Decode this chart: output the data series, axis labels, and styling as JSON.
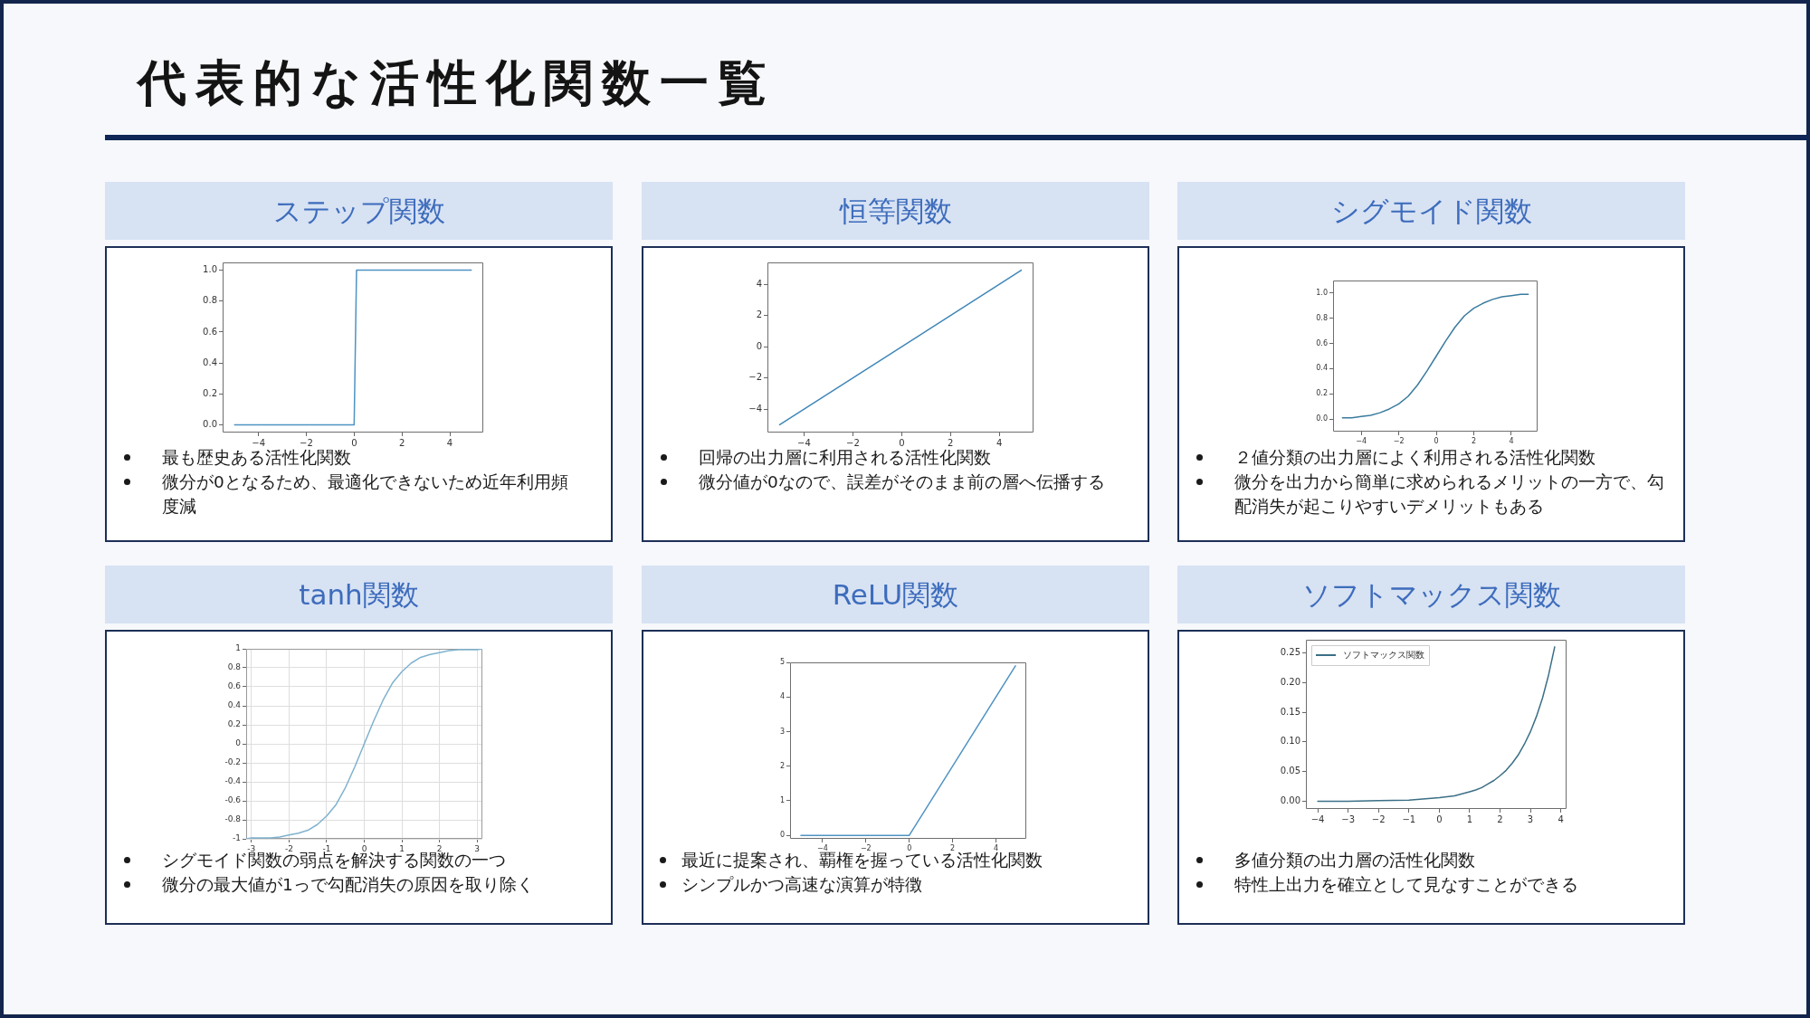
{
  "chart_data": [
    {
      "type": "other",
      "title": "代表的な活性化関数一覧"
    },
    {
      "type": "line",
      "title": "ステップ関数",
      "x": [
        -5,
        0,
        0.1,
        4.9
      ],
      "series": [
        {
          "color": "#4f93c4",
          "values": [
            0,
            0,
            1,
            1
          ]
        }
      ],
      "xlim": [
        -5.5,
        5.4
      ],
      "ylim": [
        -0.05,
        1.05
      ],
      "xticks": [
        {
          "value": -4,
          "label": "−4"
        },
        {
          "value": -2,
          "label": "−2"
        },
        0,
        2,
        4
      ],
      "yticks": [
        {
          "value": 0,
          "label": "0.0"
        },
        0.2,
        0.4,
        0.6,
        0.8,
        {
          "value": 1,
          "label": "1.0"
        }
      ],
      "annotations": [
        "最も歴史ある活性化関数",
        "微分が0となるため、最適化できないため近年利用頻度減"
      ]
    },
    {
      "type": "line",
      "title": "恒等関数",
      "x": [
        -5,
        4.9
      ],
      "series": [
        {
          "color": "#3f86b8",
          "values": [
            -5,
            4.9
          ]
        }
      ],
      "xlim": [
        -5.5,
        5.4
      ],
      "ylim": [
        -5.5,
        5.4
      ],
      "xticks": [
        {
          "value": -4,
          "label": "−4"
        },
        {
          "value": -2,
          "label": "−2"
        },
        0,
        2,
        4
      ],
      "yticks": [
        {
          "value": -4,
          "label": "−4"
        },
        {
          "value": -2,
          "label": "−2"
        },
        0,
        2,
        4
      ],
      "annotations": [
        "回帰の出力層に利用される活性化関数",
        "微分値が0なので、誤差がそのまま前の層へ伝播する"
      ]
    },
    {
      "type": "line",
      "title": "シグモイド関数",
      "x": [
        -5,
        -4.5,
        -4,
        -3.5,
        -3,
        -2.5,
        -2,
        -1.5,
        -1,
        -0.5,
        0,
        0.5,
        1,
        1.5,
        2,
        2.5,
        3,
        3.5,
        4,
        4.5,
        4.9
      ],
      "series": [
        {
          "color": "#3a7b9e",
          "values": [
            0.01,
            0.01,
            0.02,
            0.03,
            0.05,
            0.08,
            0.12,
            0.18,
            0.27,
            0.38,
            0.5,
            0.62,
            0.73,
            0.82,
            0.88,
            0.92,
            0.95,
            0.97,
            0.98,
            0.99,
            0.99
          ]
        }
      ],
      "xlim": [
        -5.5,
        5.4
      ],
      "ylim": [
        -0.1,
        1.1
      ],
      "xticks": [
        {
          "value": -4,
          "label": "−4"
        },
        {
          "value": -2,
          "label": "−2"
        },
        0,
        2,
        4
      ],
      "yticks": [
        {
          "value": 0,
          "label": "0.0"
        },
        0.2,
        0.4,
        0.6,
        0.8,
        {
          "value": 1,
          "label": "1.0"
        }
      ],
      "annotations": [
        "２値分類の出力層によく利用される活性化関数",
        "微分を出力から簡単に求められるメリットの一方で、勾配消失が起こりやすいデメリットもある"
      ]
    },
    {
      "type": "line",
      "title": "tanh関数",
      "x": [
        -3.14,
        -3,
        -2.75,
        -2.5,
        -2.25,
        -2,
        -1.75,
        -1.5,
        -1.25,
        -1,
        -0.75,
        -0.5,
        -0.25,
        0,
        0.25,
        0.5,
        0.75,
        1,
        1.25,
        1.5,
        1.75,
        2,
        2.25,
        2.5,
        2.75,
        3,
        3.14
      ],
      "series": [
        {
          "color": "#7fb2cf",
          "values": [
            -1,
            -0.99,
            -0.99,
            -0.99,
            -0.98,
            -0.96,
            -0.94,
            -0.91,
            -0.85,
            -0.76,
            -0.64,
            -0.46,
            -0.24,
            0,
            0.24,
            0.46,
            0.64,
            0.76,
            0.85,
            0.91,
            0.94,
            0.96,
            0.98,
            0.99,
            0.99,
            0.99,
            1
          ]
        }
      ],
      "xlim": [
        -3.14,
        3.14
      ],
      "ylim": [
        -1,
        1
      ],
      "xticks": [
        -3,
        -2,
        -1,
        0,
        1,
        2,
        3
      ],
      "yticks": [
        -1,
        -0.8,
        -0.6,
        -0.4,
        -0.2,
        0,
        0.2,
        0.4,
        0.6,
        0.8,
        1
      ],
      "grid": true,
      "annotations": [
        "シグモイド関数の弱点を解決する関数の一つ",
        "微分の最大値が1っで勾配消失の原因を取り除く"
      ]
    },
    {
      "type": "line",
      "title": "ReLU関数",
      "x": [
        -5,
        0,
        4.9
      ],
      "series": [
        {
          "color": "#4f93c4",
          "values": [
            0,
            0,
            4.9
          ]
        }
      ],
      "xlim": [
        -5.5,
        5.4
      ],
      "ylim": [
        -0.1,
        5
      ],
      "xticks": [
        {
          "value": -4,
          "label": "−4"
        },
        {
          "value": -2,
          "label": "−2"
        },
        0,
        2,
        4
      ],
      "yticks": [
        0,
        1,
        2,
        3,
        4,
        5
      ],
      "annotations": [
        "最近に提案され、覇権を握っている活性化関数",
        "シンプルかつ高速な演算が特徴"
      ]
    },
    {
      "type": "line",
      "title": "ソフトマックス関数",
      "x": [
        -4,
        -3,
        -2,
        -1,
        0,
        0.5,
        1,
        1.2,
        1.4,
        1.6,
        1.8,
        2,
        2.2,
        2.4,
        2.6,
        2.8,
        3,
        3.2,
        3.4,
        3.6,
        3.8
      ],
      "series": [
        {
          "name": "ソフトマックス関数",
          "color": "#3b6f86",
          "values": [
            0,
            0,
            0.001,
            0.002,
            0.006,
            0.009,
            0.016,
            0.019,
            0.023,
            0.029,
            0.035,
            0.043,
            0.052,
            0.064,
            0.078,
            0.096,
            0.117,
            0.143,
            0.174,
            0.213,
            0.26
          ]
        }
      ],
      "xlim": [
        -4.39,
        4.19
      ],
      "ylim": [
        -0.013,
        0.272
      ],
      "xticks": [
        {
          "value": -4,
          "label": "−4"
        },
        {
          "value": -3,
          "label": "−3"
        },
        {
          "value": -2,
          "label": "−2"
        },
        {
          "value": -1,
          "label": "−1"
        },
        0,
        1,
        2,
        3,
        4
      ],
      "yticks": [
        {
          "value": 0,
          "label": "0.00"
        },
        0.05,
        {
          "value": 0.1,
          "label": "0.10"
        },
        0.15,
        {
          "value": 0.2,
          "label": "0.20"
        },
        0.25
      ],
      "legend": "top left",
      "annotations": [
        "多値分類の出力層の活性化関数",
        "特性上出力を確立として見なすことができる"
      ]
    }
  ]
}
